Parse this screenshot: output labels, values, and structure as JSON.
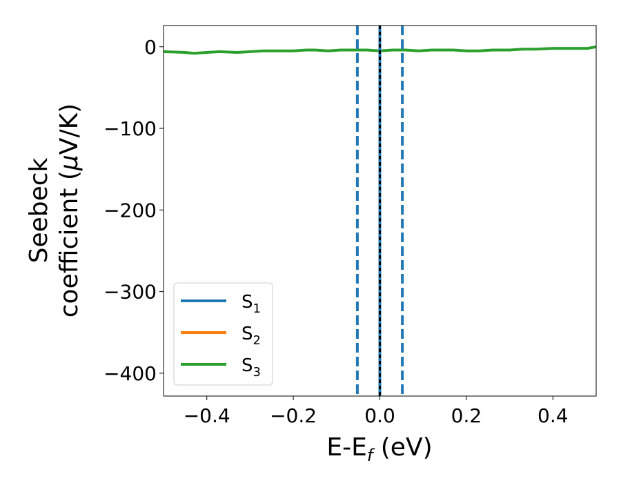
{
  "chart_data": {
    "type": "line",
    "xlabel_main": "E-E",
    "xlabel_sub": "f",
    "xlabel_unit": " (eV)",
    "ylabel_line1": "Seebeck",
    "ylabel_line2": "coefficient  (",
    "ylabel_mu": "μ",
    "ylabel_unit": "V/K)",
    "xlim": [
      -0.5,
      0.5
    ],
    "ylim": [
      -428,
      26
    ],
    "xticks": [
      -0.4,
      -0.2,
      0.0,
      0.2,
      0.4
    ],
    "xtick_labels": [
      "−0.4",
      "−0.2",
      "0.0",
      "0.2",
      "0.4"
    ],
    "yticks": [
      0,
      -100,
      -200,
      -300,
      -400
    ],
    "ytick_labels": [
      "0",
      "−100",
      "−200",
      "−300",
      "−400"
    ],
    "grid": false,
    "legend_position": "lower-left",
    "series": [
      {
        "name_main": "S",
        "name_sub": "1",
        "color": "#1f77b4",
        "x": [],
        "y": []
      },
      {
        "name_main": "S",
        "name_sub": "2",
        "color": "#ff7f0e",
        "x": [],
        "y": []
      },
      {
        "name_main": "S",
        "name_sub": "3",
        "color": "#2ca02c",
        "x": [
          -0.5,
          -0.45,
          -0.43,
          -0.4,
          -0.37,
          -0.33,
          -0.3,
          -0.27,
          -0.23,
          -0.2,
          -0.17,
          -0.15,
          -0.12,
          -0.09,
          -0.06,
          -0.03,
          0.0,
          0.03,
          0.06,
          0.09,
          0.12,
          0.15,
          0.17,
          0.2,
          0.23,
          0.26,
          0.3,
          0.33,
          0.36,
          0.4,
          0.43,
          0.46,
          0.48,
          0.5
        ],
        "y": [
          -6,
          -7,
          -8,
          -7,
          -6,
          -7,
          -6,
          -5,
          -5,
          -5,
          -4,
          -4,
          -5,
          -4,
          -4,
          -4,
          -5,
          -4,
          -4,
          -5,
          -4,
          -4,
          -4,
          -5,
          -5,
          -4,
          -4,
          -3,
          -3,
          -2,
          -2,
          -2,
          -2,
          0
        ]
      }
    ],
    "vlines": [
      {
        "x": -0.052,
        "style": "dashed",
        "color": "#1f77b4"
      },
      {
        "x": 0.052,
        "style": "dashed",
        "color": "#1f77b4"
      },
      {
        "x": 0.0,
        "style": "solid",
        "color": "#1f77b4"
      },
      {
        "x": 0.0,
        "style": "dotted",
        "color": "#000000"
      }
    ]
  }
}
